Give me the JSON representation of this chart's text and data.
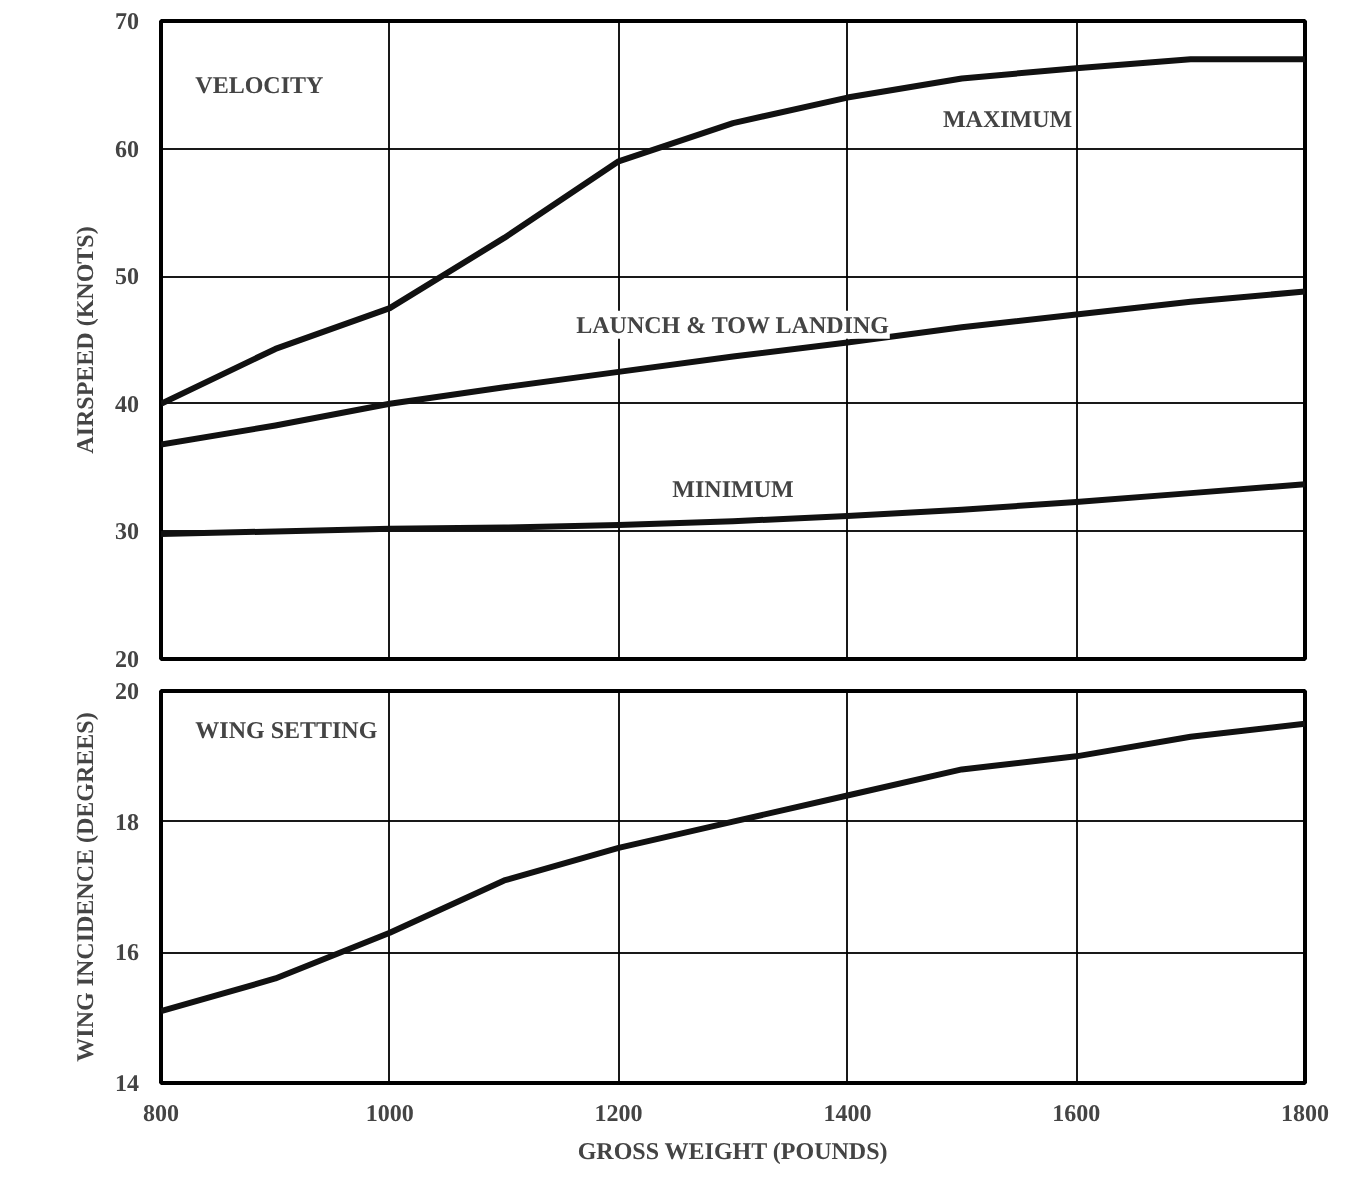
{
  "chart_data": [
    {
      "type": "line",
      "ylabel": "AIRSPEED (KNOTS)",
      "annotations": [
        "VELOCITY"
      ],
      "x": [
        800,
        900,
        1000,
        1100,
        1200,
        1300,
        1400,
        1500,
        1600,
        1700,
        1800
      ],
      "series": [
        {
          "name": "MAXIMUM",
          "color": "#111111",
          "values": [
            40,
            44.3,
            47.5,
            53,
            59,
            62,
            64,
            65.5,
            66.3,
            67,
            67
          ]
        },
        {
          "name": "LAUNCH & TOW LANDING",
          "color": "#111111",
          "values": [
            36.8,
            38.3,
            40,
            41.3,
            42.5,
            43.7,
            44.8,
            46,
            47,
            48,
            48.8
          ]
        },
        {
          "name": "MINIMUM",
          "color": "#111111",
          "values": [
            29.8,
            30,
            30.2,
            30.3,
            30.5,
            30.8,
            31.2,
            31.7,
            32.3,
            33,
            33.7
          ]
        }
      ],
      "xlim": [
        800,
        1800
      ],
      "xticks": [
        800,
        1000,
        1200,
        1400,
        1600,
        1800
      ],
      "ylim": [
        20,
        70
      ],
      "yticks": [
        20,
        30,
        40,
        50,
        60,
        70
      ],
      "grid": true,
      "tick_labels": "y",
      "line_style": "solid"
    },
    {
      "type": "line",
      "xlabel": "GROSS WEIGHT (POUNDS)",
      "ylabel": "WING INCIDENCE (DEGREES)",
      "annotations": [
        "WING SETTING"
      ],
      "x": [
        800,
        900,
        1000,
        1100,
        1200,
        1300,
        1400,
        1500,
        1600,
        1700,
        1800
      ],
      "series": [
        {
          "color": "#111111",
          "values": [
            15.1,
            15.6,
            16.3,
            17.1,
            17.6,
            18,
            18.4,
            18.8,
            19,
            19.3,
            19.5
          ]
        }
      ],
      "xlim": [
        800,
        1800
      ],
      "xticks": [
        800,
        1000,
        1200,
        1400,
        1600,
        1800
      ],
      "ylim": [
        14,
        20
      ],
      "yticks": [
        14,
        16,
        18,
        20
      ],
      "grid": true,
      "line_style": "solid"
    }
  ]
}
